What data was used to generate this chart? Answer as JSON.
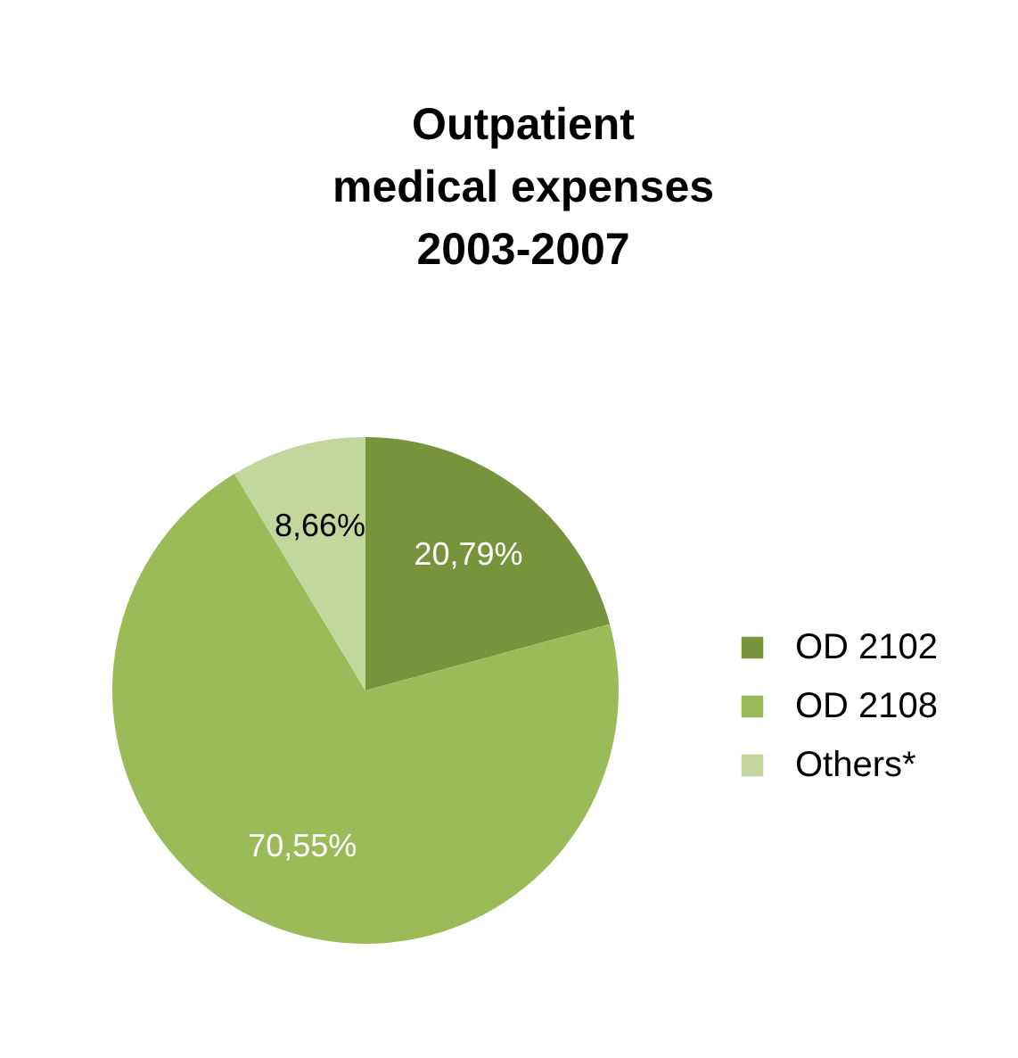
{
  "chart_data": {
    "type": "pie",
    "title": "Outpatient\nmedical expenses\n2003-2007",
    "categories": [
      "OD 2102",
      "OD 2108",
      "Others*"
    ],
    "values": [
      20.79,
      70.55,
      8.66
    ],
    "colors": [
      "#77933c",
      "#9bbb59",
      "#c3d69b"
    ],
    "value_labels": [
      "20,79%",
      "70,55%",
      "8,66%"
    ],
    "legend": "right"
  }
}
